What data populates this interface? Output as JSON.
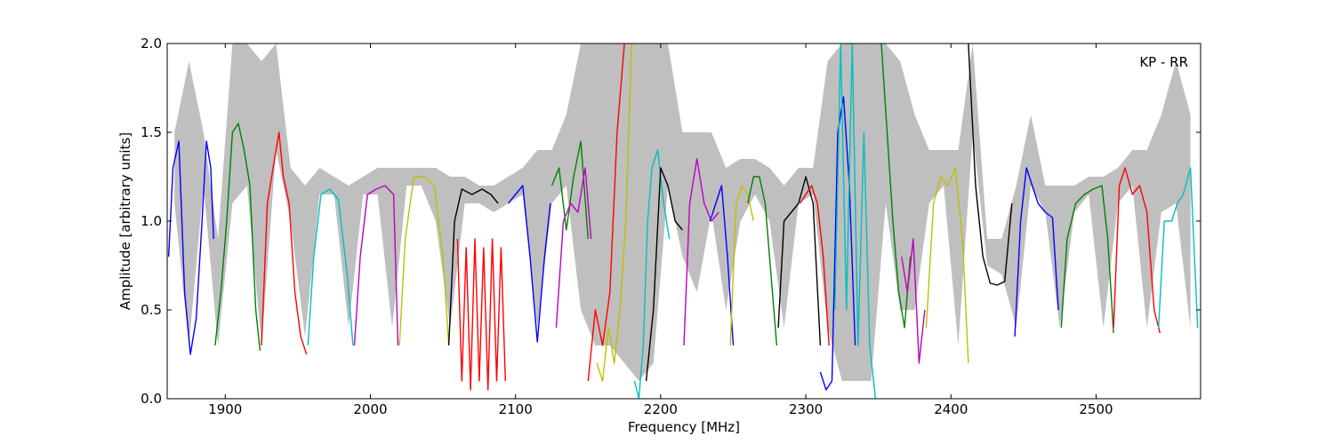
{
  "chart_data": {
    "type": "line",
    "title": "",
    "annotation": "KP - RR",
    "xlabel": "Frequency [MHz]",
    "ylabel": "Amplitude [arbitrary units]",
    "xlim": [
      1860,
      2572
    ],
    "ylim": [
      0.0,
      2.0
    ],
    "xticks": [
      1900,
      2000,
      2100,
      2200,
      2300,
      2400,
      2500
    ],
    "xtick_labels": [
      "1900",
      "2000",
      "2100",
      "2200",
      "2300",
      "2400",
      "2500"
    ],
    "yticks": [
      0.0,
      0.5,
      1.0,
      1.5,
      2.0
    ],
    "ytick_labels": [
      "0.0",
      "0.5",
      "1.0",
      "1.5",
      "2.0"
    ],
    "grid": false,
    "envelope_color": "#bfbfbf",
    "envelope": {
      "x": [
        1865,
        1875,
        1885,
        1895,
        1905,
        1915,
        1925,
        1935,
        1945,
        1955,
        1965,
        1975,
        1985,
        1995,
        2005,
        2015,
        2025,
        2035,
        2045,
        2055,
        2065,
        2075,
        2085,
        2095,
        2105,
        2115,
        2125,
        2135,
        2145,
        2155,
        2165,
        2175,
        2185,
        2195,
        2205,
        2215,
        2225,
        2235,
        2245,
        2255,
        2265,
        2275,
        2285,
        2295,
        2305,
        2315,
        2325,
        2335,
        2345,
        2355,
        2365,
        2375,
        2385,
        2395,
        2405,
        2415,
        2425,
        2435,
        2445,
        2455,
        2465,
        2475,
        2485,
        2495,
        2505,
        2515,
        2525,
        2535,
        2545,
        2555,
        2565
      ],
      "lower": [
        1.1,
        0.3,
        1.2,
        0.3,
        1.1,
        1.2,
        0.3,
        1.4,
        1.0,
        0.35,
        1.15,
        1.15,
        0.4,
        1.15,
        1.15,
        0.4,
        1.2,
        1.2,
        1.0,
        0.4,
        1.1,
        1.1,
        1.05,
        1.1,
        1.15,
        0.4,
        1.1,
        1.2,
        0.5,
        0.3,
        0.3,
        0.2,
        0.1,
        0.2,
        1.2,
        0.8,
        0.6,
        1.05,
        0.5,
        1.0,
        1.15,
        1.0,
        0.4,
        1.1,
        1.15,
        0.4,
        0.1,
        0.1,
        0.1,
        1.1,
        0.5,
        0.5,
        1.1,
        1.2,
        0.3,
        1.5,
        0.75,
        0.7,
        0.4,
        1.2,
        1.05,
        0.4,
        1.05,
        1.15,
        0.4,
        1.1,
        1.2,
        0.4,
        1.05,
        1.1,
        0.4
      ],
      "upper": [
        1.5,
        1.9,
        1.5,
        0.9,
        2.0,
        2.0,
        1.9,
        2.0,
        1.3,
        1.2,
        1.3,
        1.25,
        1.2,
        1.25,
        1.3,
        1.3,
        1.3,
        1.3,
        1.3,
        1.25,
        1.25,
        1.2,
        1.2,
        1.25,
        1.3,
        1.4,
        1.4,
        1.6,
        2.0,
        2.0,
        2.0,
        2.0,
        2.0,
        2.0,
        2.0,
        1.5,
        1.5,
        1.5,
        1.3,
        1.35,
        1.35,
        1.3,
        1.2,
        1.3,
        1.3,
        1.9,
        2.0,
        2.0,
        2.0,
        2.0,
        1.9,
        1.6,
        1.4,
        1.4,
        1.4,
        2.0,
        0.9,
        0.9,
        1.2,
        1.6,
        1.2,
        1.2,
        1.2,
        1.25,
        1.25,
        1.3,
        1.4,
        1.4,
        1.6,
        1.9,
        1.6
      ]
    },
    "series": [
      {
        "color": "#0000ff",
        "x": [
          1861,
          1864,
          1868,
          1872,
          1876,
          1880,
          1884,
          1887,
          1890,
          1892
        ],
        "y": [
          0.8,
          1.3,
          1.45,
          0.6,
          0.25,
          0.45,
          1.0,
          1.45,
          1.3,
          0.9
        ]
      },
      {
        "color": "#008000",
        "x": [
          1893,
          1897,
          1901,
          1905,
          1909,
          1913,
          1917,
          1921,
          1924
        ],
        "y": [
          0.3,
          0.6,
          1.0,
          1.5,
          1.55,
          1.4,
          1.2,
          0.5,
          0.27
        ]
      },
      {
        "color": "#ff0000",
        "x": [
          1925,
          1929,
          1933,
          1937,
          1940,
          1944,
          1948,
          1952,
          1956
        ],
        "y": [
          0.3,
          1.1,
          1.3,
          1.5,
          1.25,
          1.1,
          0.6,
          0.35,
          0.25
        ]
      },
      {
        "color": "#00bfbf",
        "x": [
          1957,
          1961,
          1966,
          1972,
          1978,
          1984,
          1988
        ],
        "y": [
          0.3,
          0.8,
          1.15,
          1.18,
          1.12,
          0.7,
          0.3
        ]
      },
      {
        "color": "#bf00bf",
        "x": [
          1989,
          1993,
          1998,
          2004,
          2010,
          2016,
          2019
        ],
        "y": [
          0.3,
          0.8,
          1.15,
          1.18,
          1.2,
          1.15,
          0.3
        ]
      },
      {
        "color": "#bfbf00",
        "x": [
          2020,
          2024,
          2030,
          2037,
          2044,
          2050,
          2054
        ],
        "y": [
          0.3,
          0.9,
          1.25,
          1.25,
          1.2,
          0.8,
          0.3
        ]
      },
      {
        "color": "#000000",
        "x": [
          2054,
          2058,
          2063,
          2070,
          2077,
          2083,
          2088
        ],
        "y": [
          0.3,
          1.0,
          1.18,
          1.15,
          1.18,
          1.15,
          1.1
        ]
      },
      {
        "color": "#ff0000",
        "x": [
          2060,
          2063,
          2066,
          2069,
          2072,
          2075,
          2078,
          2081,
          2084,
          2087,
          2090,
          2093
        ],
        "y": [
          0.9,
          0.1,
          0.85,
          0.05,
          0.9,
          0.1,
          0.85,
          0.05,
          0.9,
          0.1,
          0.85,
          0.1
        ]
      },
      {
        "color": "#0000ff",
        "x": [
          2095,
          2100,
          2105,
          2110,
          2115,
          2120,
          2124
        ],
        "y": [
          1.1,
          1.15,
          1.2,
          0.8,
          0.32,
          0.8,
          1.1
        ]
      },
      {
        "color": "#008000",
        "x": [
          2125,
          2130,
          2135,
          2140,
          2145,
          2150
        ],
        "y": [
          1.2,
          1.3,
          0.95,
          1.25,
          1.45,
          0.9
        ]
      },
      {
        "color": "#bf00bf",
        "x": [
          2128,
          2133,
          2138,
          2143,
          2148,
          2152
        ],
        "y": [
          0.4,
          1.0,
          1.1,
          1.05,
          1.3,
          0.9
        ]
      },
      {
        "color": "#ff0000",
        "x": [
          2150,
          2155,
          2160,
          2165,
          2170,
          2175
        ],
        "y": [
          0.1,
          0.5,
          0.3,
          0.6,
          1.5,
          2.0
        ]
      },
      {
        "color": "#bfbf00",
        "x": [
          2156,
          2160,
          2164,
          2168,
          2172,
          2176,
          2180
        ],
        "y": [
          0.2,
          0.1,
          0.4,
          0.2,
          0.5,
          1.0,
          2.0
        ]
      },
      {
        "color": "#00bfbf",
        "x": [
          2182,
          2185,
          2188,
          2191,
          2194,
          2198,
          2202,
          2206
        ],
        "y": [
          0.1,
          0.0,
          0.3,
          1.0,
          1.3,
          1.4,
          1.1,
          0.9
        ]
      },
      {
        "color": "#000000",
        "x": [
          2190,
          2195,
          2200,
          2205,
          2210,
          2215
        ],
        "y": [
          0.1,
          0.5,
          1.3,
          1.2,
          1.0,
          0.95
        ]
      },
      {
        "color": "#bf00bf",
        "x": [
          2216,
          2220,
          2225,
          2230,
          2235,
          2240
        ],
        "y": [
          0.3,
          1.1,
          1.35,
          1.1,
          1.0,
          1.05
        ]
      },
      {
        "color": "#0000ff",
        "x": [
          2234,
          2238,
          2242,
          2246,
          2250
        ],
        "y": [
          1.0,
          1.1,
          1.2,
          0.8,
          0.3
        ]
      },
      {
        "color": "#bfbf00",
        "x": [
          2248,
          2252,
          2256,
          2260,
          2264
        ],
        "y": [
          0.3,
          1.1,
          1.2,
          1.15,
          1.0
        ]
      },
      {
        "color": "#008000",
        "x": [
          2260,
          2264,
          2268,
          2272,
          2276,
          2280
        ],
        "y": [
          1.1,
          1.25,
          1.25,
          1.1,
          0.7,
          0.3
        ]
      },
      {
        "color": "#000000",
        "x": [
          2281,
          2285,
          2290,
          2295,
          2300,
          2305,
          2310
        ],
        "y": [
          0.4,
          1.0,
          1.05,
          1.1,
          1.25,
          1.1,
          0.3
        ]
      },
      {
        "color": "#ff0000",
        "x": [
          2296,
          2300,
          2304,
          2308,
          2312,
          2316
        ],
        "y": [
          1.1,
          1.15,
          1.2,
          1.1,
          0.8,
          0.3
        ]
      },
      {
        "color": "#0000ff",
        "x": [
          2310,
          2314,
          2318,
          2322,
          2326,
          2330,
          2334
        ],
        "y": [
          0.15,
          0.05,
          0.1,
          1.5,
          1.7,
          1.2,
          0.3
        ]
      },
      {
        "color": "#00bfbf",
        "x": [
          2320,
          2324,
          2328,
          2332,
          2336,
          2340,
          2344,
          2348
        ],
        "y": [
          0.5,
          2.0,
          0.5,
          2.0,
          0.3,
          1.5,
          0.3,
          0.0
        ]
      },
      {
        "color": "#008000",
        "x": [
          2352,
          2356,
          2360,
          2364,
          2368,
          2372
        ],
        "y": [
          2.0,
          1.5,
          1.0,
          0.6,
          0.4,
          0.8
        ]
      },
      {
        "color": "#bf00bf",
        "x": [
          2366,
          2370,
          2374,
          2378,
          2382
        ],
        "y": [
          0.8,
          0.6,
          0.9,
          0.2,
          0.5
        ]
      },
      {
        "color": "#bfbf00",
        "x": [
          2383,
          2388,
          2393,
          2398,
          2403,
          2408,
          2412
        ],
        "y": [
          0.4,
          1.1,
          1.25,
          1.2,
          1.3,
          0.9,
          0.2
        ]
      },
      {
        "color": "#000000",
        "x": [
          2412,
          2417,
          2422,
          2427,
          2432,
          2437,
          2442
        ],
        "y": [
          2.0,
          1.2,
          0.8,
          0.65,
          0.64,
          0.66,
          1.1
        ]
      },
      {
        "color": "#0000ff",
        "x": [
          2444,
          2448,
          2452,
          2456,
          2460,
          2465,
          2470,
          2474
        ],
        "y": [
          0.35,
          1.0,
          1.3,
          1.2,
          1.1,
          1.05,
          1.02,
          0.5
        ]
      },
      {
        "color": "#008000",
        "x": [
          2476,
          2480,
          2486,
          2492,
          2498,
          2504,
          2508,
          2512
        ],
        "y": [
          0.4,
          0.9,
          1.1,
          1.15,
          1.18,
          1.2,
          0.9,
          0.37
        ]
      },
      {
        "color": "#ff0000",
        "x": [
          2512,
          2516,
          2520,
          2525,
          2530,
          2535,
          2540,
          2544
        ],
        "y": [
          0.4,
          1.2,
          1.3,
          1.15,
          1.2,
          1.05,
          0.5,
          0.37
        ]
      },
      {
        "color": "#00bfbf",
        "x": [
          2543,
          2547,
          2552,
          2556,
          2560,
          2565,
          2570
        ],
        "y": [
          0.4,
          1.0,
          1.0,
          1.1,
          1.15,
          1.3,
          0.4
        ]
      }
    ]
  }
}
